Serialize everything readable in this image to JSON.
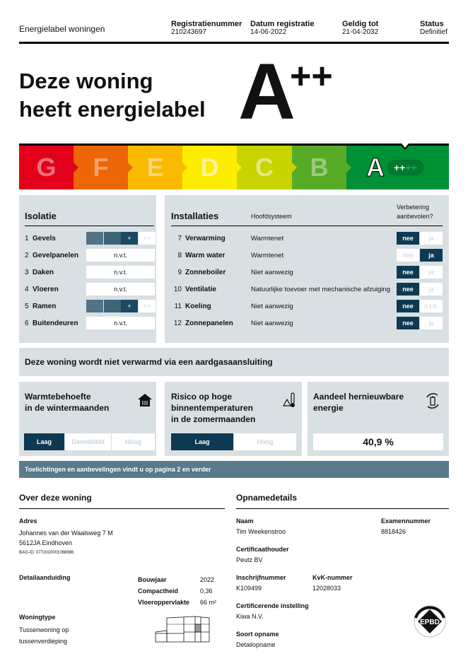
{
  "header": {
    "title": "Energielabel woningen",
    "fields": [
      {
        "label": "Registratienummer",
        "value": "210243697"
      },
      {
        "label": "Datum registratie",
        "value": "14-06-2022"
      },
      {
        "label": "Geldig tot",
        "value": "21-04-2032"
      },
      {
        "label": "Status",
        "value": "Definitief"
      }
    ]
  },
  "hero": {
    "line1": "Deze woning",
    "line2": "heeft energielabel",
    "label": "A",
    "plus": "++"
  },
  "scale": {
    "classes": [
      {
        "letter": "G",
        "color": "#e2001a"
      },
      {
        "letter": "F",
        "color": "#ec6608"
      },
      {
        "letter": "E",
        "color": "#fbba00"
      },
      {
        "letter": "D",
        "color": "#ffed00"
      },
      {
        "letter": "C",
        "color": "#c8d400"
      },
      {
        "letter": "B",
        "color": "#58ab27"
      },
      {
        "letter": "A",
        "color": "#009036"
      }
    ],
    "a_plus_active": "++",
    "a_plus_inactive": "++"
  },
  "isolatie": {
    "title": "Isolatie",
    "rows": [
      {
        "num": "1",
        "name": "Gevels",
        "type": "scale",
        "level": 3
      },
      {
        "num": "2",
        "name": "Gevelpanelen",
        "type": "text",
        "value": "n.v.t."
      },
      {
        "num": "3",
        "name": "Daken",
        "type": "text",
        "value": "n.v.t."
      },
      {
        "num": "4",
        "name": "Vloeren",
        "type": "text",
        "value": "n.v.t."
      },
      {
        "num": "5",
        "name": "Ramen",
        "type": "scale",
        "level": 3
      },
      {
        "num": "6",
        "name": "Buitendeuren",
        "type": "text",
        "value": "n.v.t."
      }
    ],
    "plus": "+",
    "plusplus": "++"
  },
  "installaties": {
    "title": "Installaties",
    "col_hoofdsysteem": "Hoofdsysteem",
    "col_verbetering_1": "Verbetering",
    "col_verbetering_2": "aanbevolen?",
    "rows": [
      {
        "num": "7",
        "name": "Verwarming",
        "system": "Warmtenet",
        "no": "nee",
        "yes": "ja",
        "selected": "no"
      },
      {
        "num": "8",
        "name": "Warm water",
        "system": "Warmtenet",
        "no": "nee",
        "yes": "ja",
        "selected": "yes"
      },
      {
        "num": "9",
        "name": "Zonneboiler",
        "system": "Niet aanwezig",
        "no": "nee",
        "yes": "ja",
        "selected": "no"
      },
      {
        "num": "10",
        "name": "Ventilatie",
        "system": "Natuurlijke toevoer met mechanische afzuiging",
        "no": "nee",
        "yes": "ja",
        "selected": "no"
      },
      {
        "num": "11",
        "name": "Koeling",
        "system": "Niet aanwezig",
        "no": "nee",
        "yes": "n.t.b.",
        "selected": "no"
      },
      {
        "num": "12",
        "name": "Zonnepanelen",
        "system": "Niet aanwezig",
        "no": "nee",
        "yes": "ja",
        "selected": "no"
      }
    ]
  },
  "gas_notice": "Deze woning wordt niet verwarmd via een aardgasaansluiting",
  "warmte": {
    "line1": "Warmtebehoefte",
    "line2": "in de wintermaanden",
    "options": [
      "Laag",
      "Gemiddeld",
      "Hoog"
    ],
    "selected": "Laag",
    "icon": "house-radiator-icon"
  },
  "risico": {
    "line1": "Risico op hoge",
    "line2": "binnentemperaturen",
    "line3": "in de zomermaanden",
    "options": [
      "Laag",
      "Hoog"
    ],
    "selected": "Laag",
    "icon": "thermometer-warning-icon"
  },
  "hernieuwbaar": {
    "line1": "Aandeel hernieuwbare",
    "line2": "energie",
    "value": "40,9 %",
    "icon": "renewable-battery-icon"
  },
  "info_bar": "Toelichtingen en aanbevelingen vindt u op pagina 2 en verder",
  "woning": {
    "title": "Over deze woning",
    "adres_label": "Adres",
    "adres_1": "Johannes van der Waalsweg 7 M",
    "adres_2": "5612JA Eindhoven",
    "bag": "BAG-ID: 0772010001068986",
    "detail_label": "Detailaanduiding",
    "bouwjaar_label": "Bouwjaar",
    "bouwjaar": "2022",
    "compact_label": "Compactheid",
    "compact": "0,36",
    "vloer_label": "Vloeroppervlakte",
    "vloer": "66 m²",
    "type_label": "Woningtype",
    "type_1": "Tussenwoning op",
    "type_2": "tussenverdieping"
  },
  "opname": {
    "title": "Opnamedetails",
    "naam_label": "Naam",
    "naam": "Tim Weekenstroo",
    "exam_label": "Examennummer",
    "exam": "8818426",
    "cert_label": "Certificaathouder",
    "cert": "Peutz BV",
    "inschrijf_label": "Inschrijfnummer",
    "inschrijf": "K109499",
    "kvk_label": "KvK-nummer",
    "kvk": "12028033",
    "inst_label": "Certificerende instelling",
    "inst": "Kiwa N.V.",
    "soort_label": "Soort opname",
    "soort": "Detailopname",
    "logo": "EPBD"
  }
}
